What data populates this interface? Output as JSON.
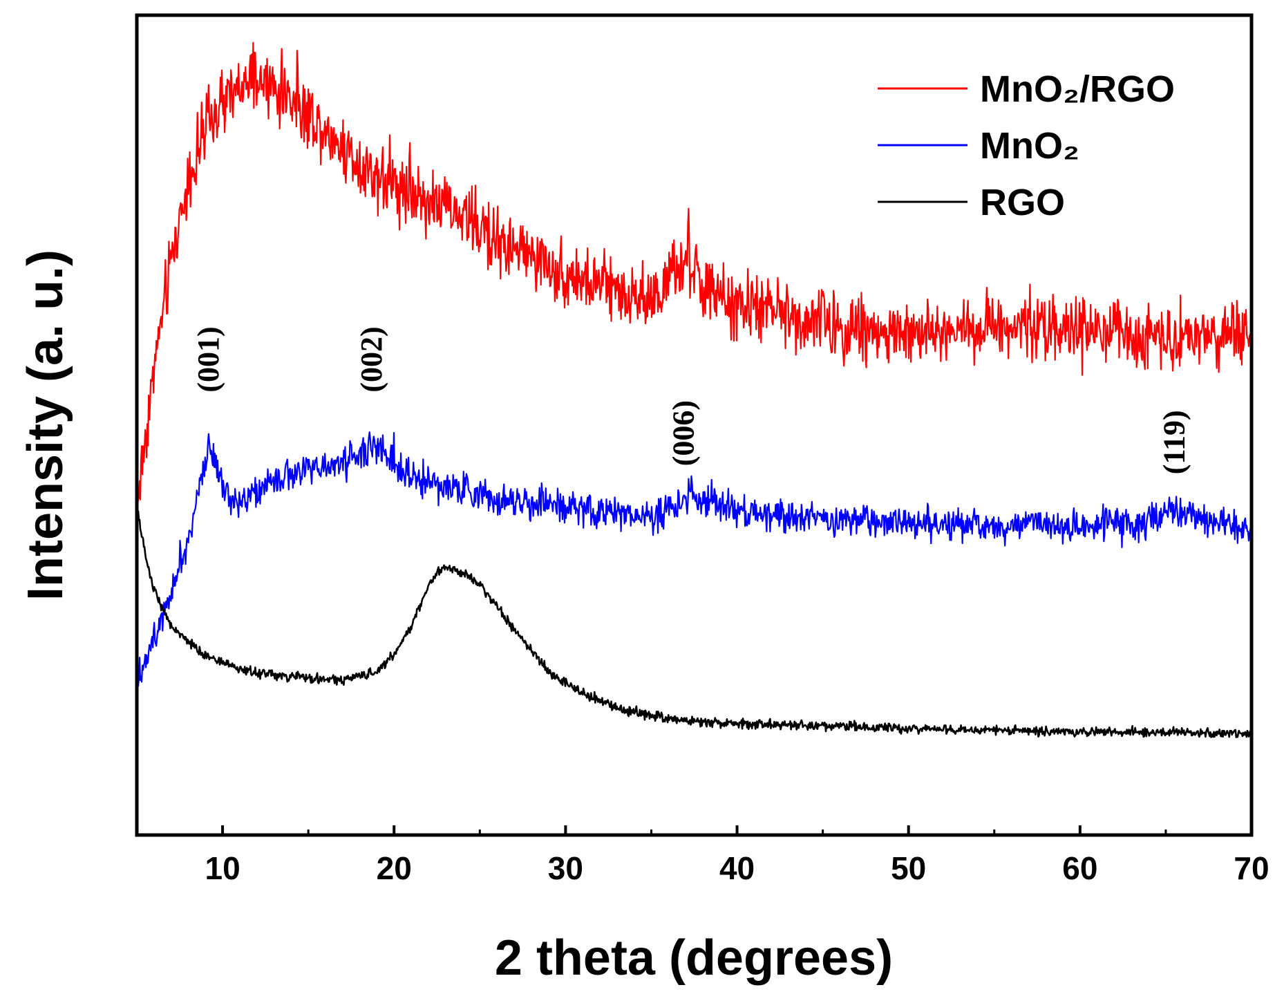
{
  "chart_data": {
    "type": "line",
    "title": "",
    "xlabel": "2 theta (degrees)",
    "ylabel": "Intensity (a. u.)",
    "xlim": [
      5,
      70
    ],
    "ylim": [
      0,
      100
    ],
    "xticks": [
      10,
      20,
      30,
      40,
      50,
      60,
      70
    ],
    "xtick_labels": [
      "10",
      "20",
      "30",
      "40",
      "50",
      "60",
      "70"
    ],
    "yticks_shown": false,
    "legend_position": "top-right",
    "series": [
      {
        "name": "MnO₂/RGO",
        "color": "#ff0000",
        "noise": 3.2,
        "x": [
          5,
          6,
          7,
          8,
          9,
          10,
          11,
          12,
          13,
          14,
          15,
          16,
          17,
          18,
          19,
          20,
          21,
          22,
          23,
          24,
          25,
          26,
          27,
          28,
          29,
          30,
          31,
          32,
          33,
          34,
          35,
          36,
          36.5,
          37,
          37.5,
          38,
          39,
          40,
          42,
          44,
          46,
          48,
          50,
          52,
          54,
          56,
          58,
          60,
          62,
          64,
          66,
          68,
          70
        ],
        "y": [
          40,
          57,
          70,
          80,
          86,
          89,
          91,
          92,
          91,
          90,
          88,
          86,
          84,
          82,
          80.5,
          79.5,
          78.5,
          77.5,
          76.5,
          75.5,
          74,
          72.5,
          71.5,
          70.5,
          69.5,
          68.5,
          67.5,
          67,
          66.5,
          66,
          65.5,
          67,
          69,
          70,
          69,
          67,
          65,
          64.5,
          64,
          63,
          62,
          61.5,
          61,
          61.5,
          62,
          62.5,
          62,
          61.5,
          61,
          61,
          61,
          61,
          61
        ]
      },
      {
        "name": "MnO₂",
        "color": "#0000ff",
        "noise": 1.6,
        "x": [
          5,
          6,
          7,
          8,
          8.7,
          9.2,
          9.8,
          10.5,
          11.5,
          13,
          15,
          17,
          18,
          18.7,
          19.5,
          20.5,
          22,
          24,
          26,
          28,
          30,
          32,
          34,
          35.5,
          36.5,
          37.2,
          38,
          39,
          40,
          42,
          45,
          50,
          55,
          60,
          63,
          64.5,
          65.5,
          66.5,
          68,
          70
        ],
        "y": [
          19,
          24,
          30,
          36,
          43,
          48,
          44,
          41,
          41,
          43,
          44.5,
          45.5,
          46.5,
          47.5,
          46.5,
          44.5,
          43,
          42,
          41,
          40.5,
          40,
          39.5,
          39,
          39,
          40.5,
          41.5,
          41,
          40,
          39.5,
          39,
          38.5,
          38,
          37.8,
          37.7,
          38,
          38.5,
          39.8,
          39,
          38,
          37.5
        ]
      },
      {
        "name": "RGO",
        "color": "#000000",
        "noise": 0.45,
        "x": [
          5,
          5.5,
          6,
          7,
          8,
          9,
          10,
          11,
          12,
          13,
          14,
          15,
          16,
          17,
          18,
          19,
          20,
          21,
          21.5,
          22,
          22.5,
          23,
          23.5,
          24,
          25,
          26,
          27,
          28,
          29,
          30,
          31,
          32,
          33,
          34,
          35,
          36,
          38,
          40,
          45,
          50,
          55,
          60,
          65,
          70
        ],
        "y": [
          40,
          34,
          30,
          25.5,
          23.5,
          22,
          21,
          20.2,
          19.8,
          19.5,
          19.3,
          19.1,
          19,
          19,
          19.3,
          20,
          22,
          25.5,
          28,
          30.5,
          32,
          32.5,
          32.5,
          32,
          30.5,
          28,
          25,
          22.5,
          20,
          18.5,
          17.3,
          16.5,
          15.5,
          15,
          14.6,
          14.2,
          13.8,
          13.6,
          13.3,
          13,
          12.8,
          12.6,
          12.5,
          12.4
        ]
      }
    ],
    "annotations": [
      {
        "text": "(001)",
        "x": 9.2,
        "y": 54
      },
      {
        "text": "(002)",
        "x": 18.7,
        "y": 54
      },
      {
        "text": "(006)",
        "x": 36.9,
        "y": 45
      },
      {
        "text": "(119)",
        "x": 65.5,
        "y": 44
      }
    ]
  }
}
